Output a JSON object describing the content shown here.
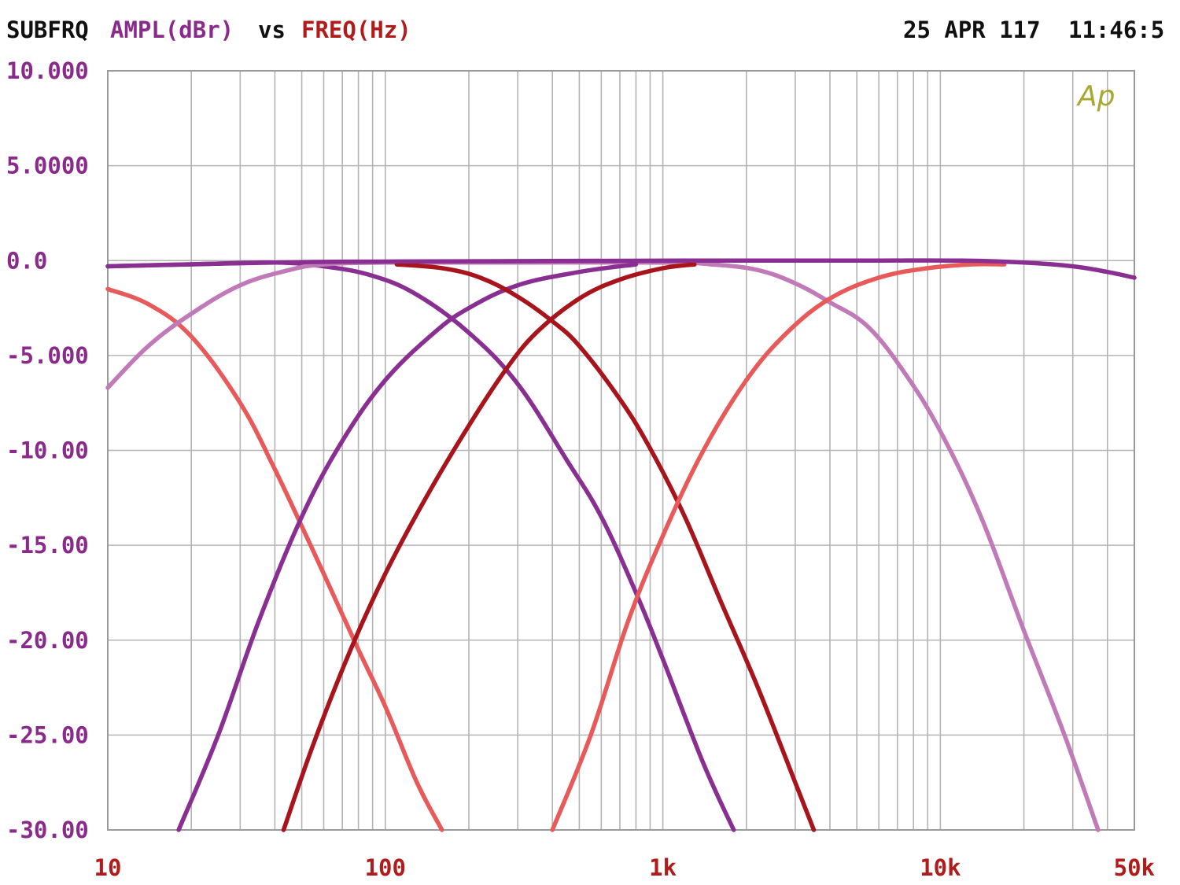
{
  "header": {
    "label_subfrq": "SUBFRQ",
    "label_ampl": "AMPL(dBr)",
    "label_vs": "vs",
    "label_freq": "FREQ(Hz)",
    "date": "25 APR 117",
    "time": "11:46:5"
  },
  "logo_text": "Ap",
  "colors": {
    "grid": "#b4b4b4",
    "frame": "#9a9a9a",
    "y_label": "#8a2a8a",
    "x_label": "#b01c1c",
    "header_black": "#101010",
    "logo": "#a8a830",
    "curve_salmon": "#e85a5a",
    "curve_purple": "#8a2f92",
    "curve_darkred": "#a8141c",
    "curve_lilac": "#c07ab8"
  },
  "chart_data": {
    "type": "line",
    "title": "",
    "xlabel": "FREQ(Hz)",
    "ylabel": "AMPL(dBr)",
    "x_scale": "log",
    "xlim": [
      10,
      50000
    ],
    "ylim": [
      -30,
      10
    ],
    "grid": true,
    "y_ticks": [
      {
        "value": 10,
        "label": "10.000"
      },
      {
        "value": 5,
        "label": "5.0000"
      },
      {
        "value": 0,
        "label": "0.0"
      },
      {
        "value": -5,
        "label": "-5.000"
      },
      {
        "value": -10,
        "label": "-10.00"
      },
      {
        "value": -15,
        "label": "-15.00"
      },
      {
        "value": -20,
        "label": "-20.00"
      },
      {
        "value": -25,
        "label": "-25.00"
      },
      {
        "value": -30,
        "label": "-30.00"
      }
    ],
    "x_ticks": [
      {
        "value": 10,
        "label": "10"
      },
      {
        "value": 100,
        "label": "100"
      },
      {
        "value": 1000,
        "label": "1k"
      },
      {
        "value": 10000,
        "label": "10k"
      },
      {
        "value": 50000,
        "label": "50k"
      }
    ],
    "series": [
      {
        "color": "#e85a5a",
        "points": [
          [
            10,
            -1.5
          ],
          [
            14,
            -2.3
          ],
          [
            20,
            -4
          ],
          [
            30,
            -7.5
          ],
          [
            40,
            -11
          ],
          [
            50,
            -14
          ],
          [
            60,
            -16.5
          ],
          [
            80,
            -20.5
          ],
          [
            100,
            -23.5
          ],
          [
            130,
            -27.5
          ],
          [
            160,
            -30
          ]
        ]
      },
      {
        "color": "#8a2f92",
        "points": [
          [
            10,
            -0.3
          ],
          [
            20,
            -0.2
          ],
          [
            40,
            -0.1
          ],
          [
            60,
            -0.3
          ],
          [
            90,
            -0.8
          ],
          [
            130,
            -1.8
          ],
          [
            200,
            -3.8
          ],
          [
            300,
            -6.5
          ],
          [
            450,
            -10.5
          ],
          [
            600,
            -13.5
          ],
          [
            800,
            -17.5
          ],
          [
            1000,
            -21
          ],
          [
            1400,
            -26.5
          ],
          [
            1800,
            -30
          ]
        ]
      },
      {
        "color": "#c07ab8",
        "points": [
          [
            10,
            -6.7
          ],
          [
            14,
            -4.5
          ],
          [
            20,
            -2.8
          ],
          [
            30,
            -1.3
          ],
          [
            45,
            -0.5
          ],
          [
            60,
            -0.2
          ],
          [
            100,
            -0.1
          ],
          [
            300,
            -0.1
          ],
          [
            1000,
            -0.1
          ],
          [
            1500,
            -0.2
          ],
          [
            2200,
            -0.5
          ],
          [
            3000,
            -1.2
          ],
          [
            4000,
            -2.2
          ],
          [
            5500,
            -3.5
          ],
          [
            7500,
            -6
          ],
          [
            10000,
            -9
          ],
          [
            14000,
            -13.5
          ],
          [
            20000,
            -19.5
          ],
          [
            28000,
            -25
          ],
          [
            37000,
            -30
          ]
        ]
      },
      {
        "color": "#8a2f92",
        "points": [
          [
            18,
            -30
          ],
          [
            25,
            -25
          ],
          [
            35,
            -19
          ],
          [
            50,
            -13.5
          ],
          [
            70,
            -9.5
          ],
          [
            100,
            -6.3
          ],
          [
            150,
            -3.8
          ],
          [
            200,
            -2.5
          ],
          [
            300,
            -1.3
          ],
          [
            500,
            -0.6
          ],
          [
            800,
            -0.2
          ]
        ]
      },
      {
        "color": "#a8141c",
        "points": [
          [
            110,
            -0.2
          ],
          [
            160,
            -0.4
          ],
          [
            220,
            -0.9
          ],
          [
            300,
            -1.9
          ],
          [
            400,
            -3.2
          ],
          [
            500,
            -4.5
          ],
          [
            700,
            -7.3
          ],
          [
            900,
            -9.9
          ],
          [
            1200,
            -13.5
          ],
          [
            1600,
            -17.8
          ],
          [
            2200,
            -22.5
          ],
          [
            3000,
            -27.5
          ],
          [
            3500,
            -30
          ]
        ]
      },
      {
        "color": "#a8141c",
        "points": [
          [
            43,
            -30
          ],
          [
            55,
            -25.5
          ],
          [
            75,
            -20.5
          ],
          [
            100,
            -16.5
          ],
          [
            140,
            -12.5
          ],
          [
            200,
            -8.7
          ],
          [
            270,
            -5.8
          ],
          [
            350,
            -3.8
          ],
          [
            500,
            -2
          ],
          [
            700,
            -1
          ],
          [
            1000,
            -0.4
          ],
          [
            1300,
            -0.2
          ]
        ]
      },
      {
        "color": "#e85a5a",
        "points": [
          [
            400,
            -30
          ],
          [
            550,
            -25
          ],
          [
            750,
            -19
          ],
          [
            1000,
            -14.5
          ],
          [
            1400,
            -10
          ],
          [
            2000,
            -6.3
          ],
          [
            2800,
            -3.8
          ],
          [
            4000,
            -2
          ],
          [
            6000,
            -0.9
          ],
          [
            9000,
            -0.4
          ],
          [
            13000,
            -0.2
          ],
          [
            17000,
            -0.2
          ]
        ]
      },
      {
        "color": "#8a2f92",
        "points": [
          [
            10,
            -0.3
          ],
          [
            40,
            -0.1
          ],
          [
            100,
            -0.05
          ],
          [
            1200,
            0
          ],
          [
            5000,
            0
          ],
          [
            12000,
            0
          ],
          [
            20000,
            -0.1
          ],
          [
            30000,
            -0.3
          ],
          [
            40000,
            -0.6
          ],
          [
            50000,
            -0.9
          ]
        ]
      }
    ]
  }
}
